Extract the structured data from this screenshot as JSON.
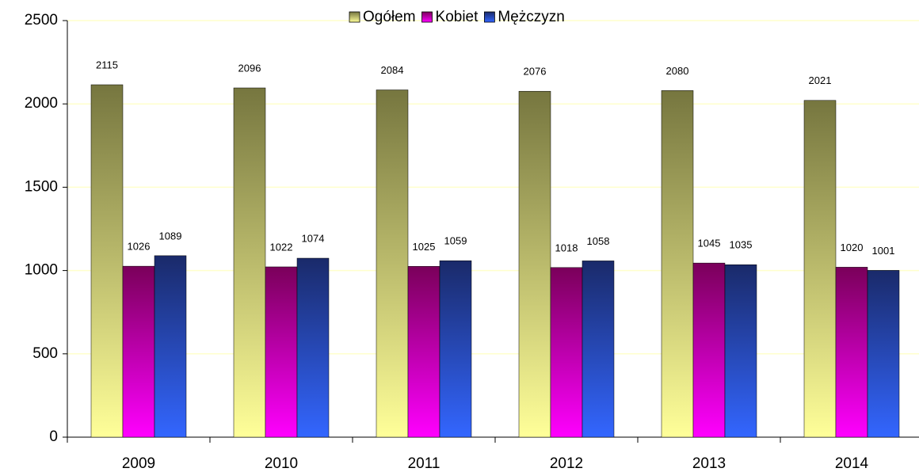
{
  "chart_data": {
    "type": "bar",
    "categories": [
      "2009",
      "2010",
      "2011",
      "2012",
      "2013",
      "2014"
    ],
    "series": [
      {
        "name": "Ogółem",
        "color": "#ffff99",
        "color_top": "#76763f",
        "values": [
          2115,
          2096,
          2084,
          2076,
          2080,
          2021
        ]
      },
      {
        "name": "Kobiet",
        "color": "#ff00ff",
        "color_top": "#7a005a",
        "values": [
          1026,
          1022,
          1025,
          1018,
          1045,
          1020
        ]
      },
      {
        "name": "Mężczyzn",
        "color": "#3366ff",
        "color_top": "#1a2a6a",
        "values": [
          1089,
          1074,
          1059,
          1058,
          1035,
          1001
        ]
      }
    ],
    "ylim": [
      0,
      2500
    ],
    "yticks": [
      0,
      500,
      1000,
      1500,
      2000,
      2500
    ],
    "grid": true,
    "legend": "top"
  }
}
